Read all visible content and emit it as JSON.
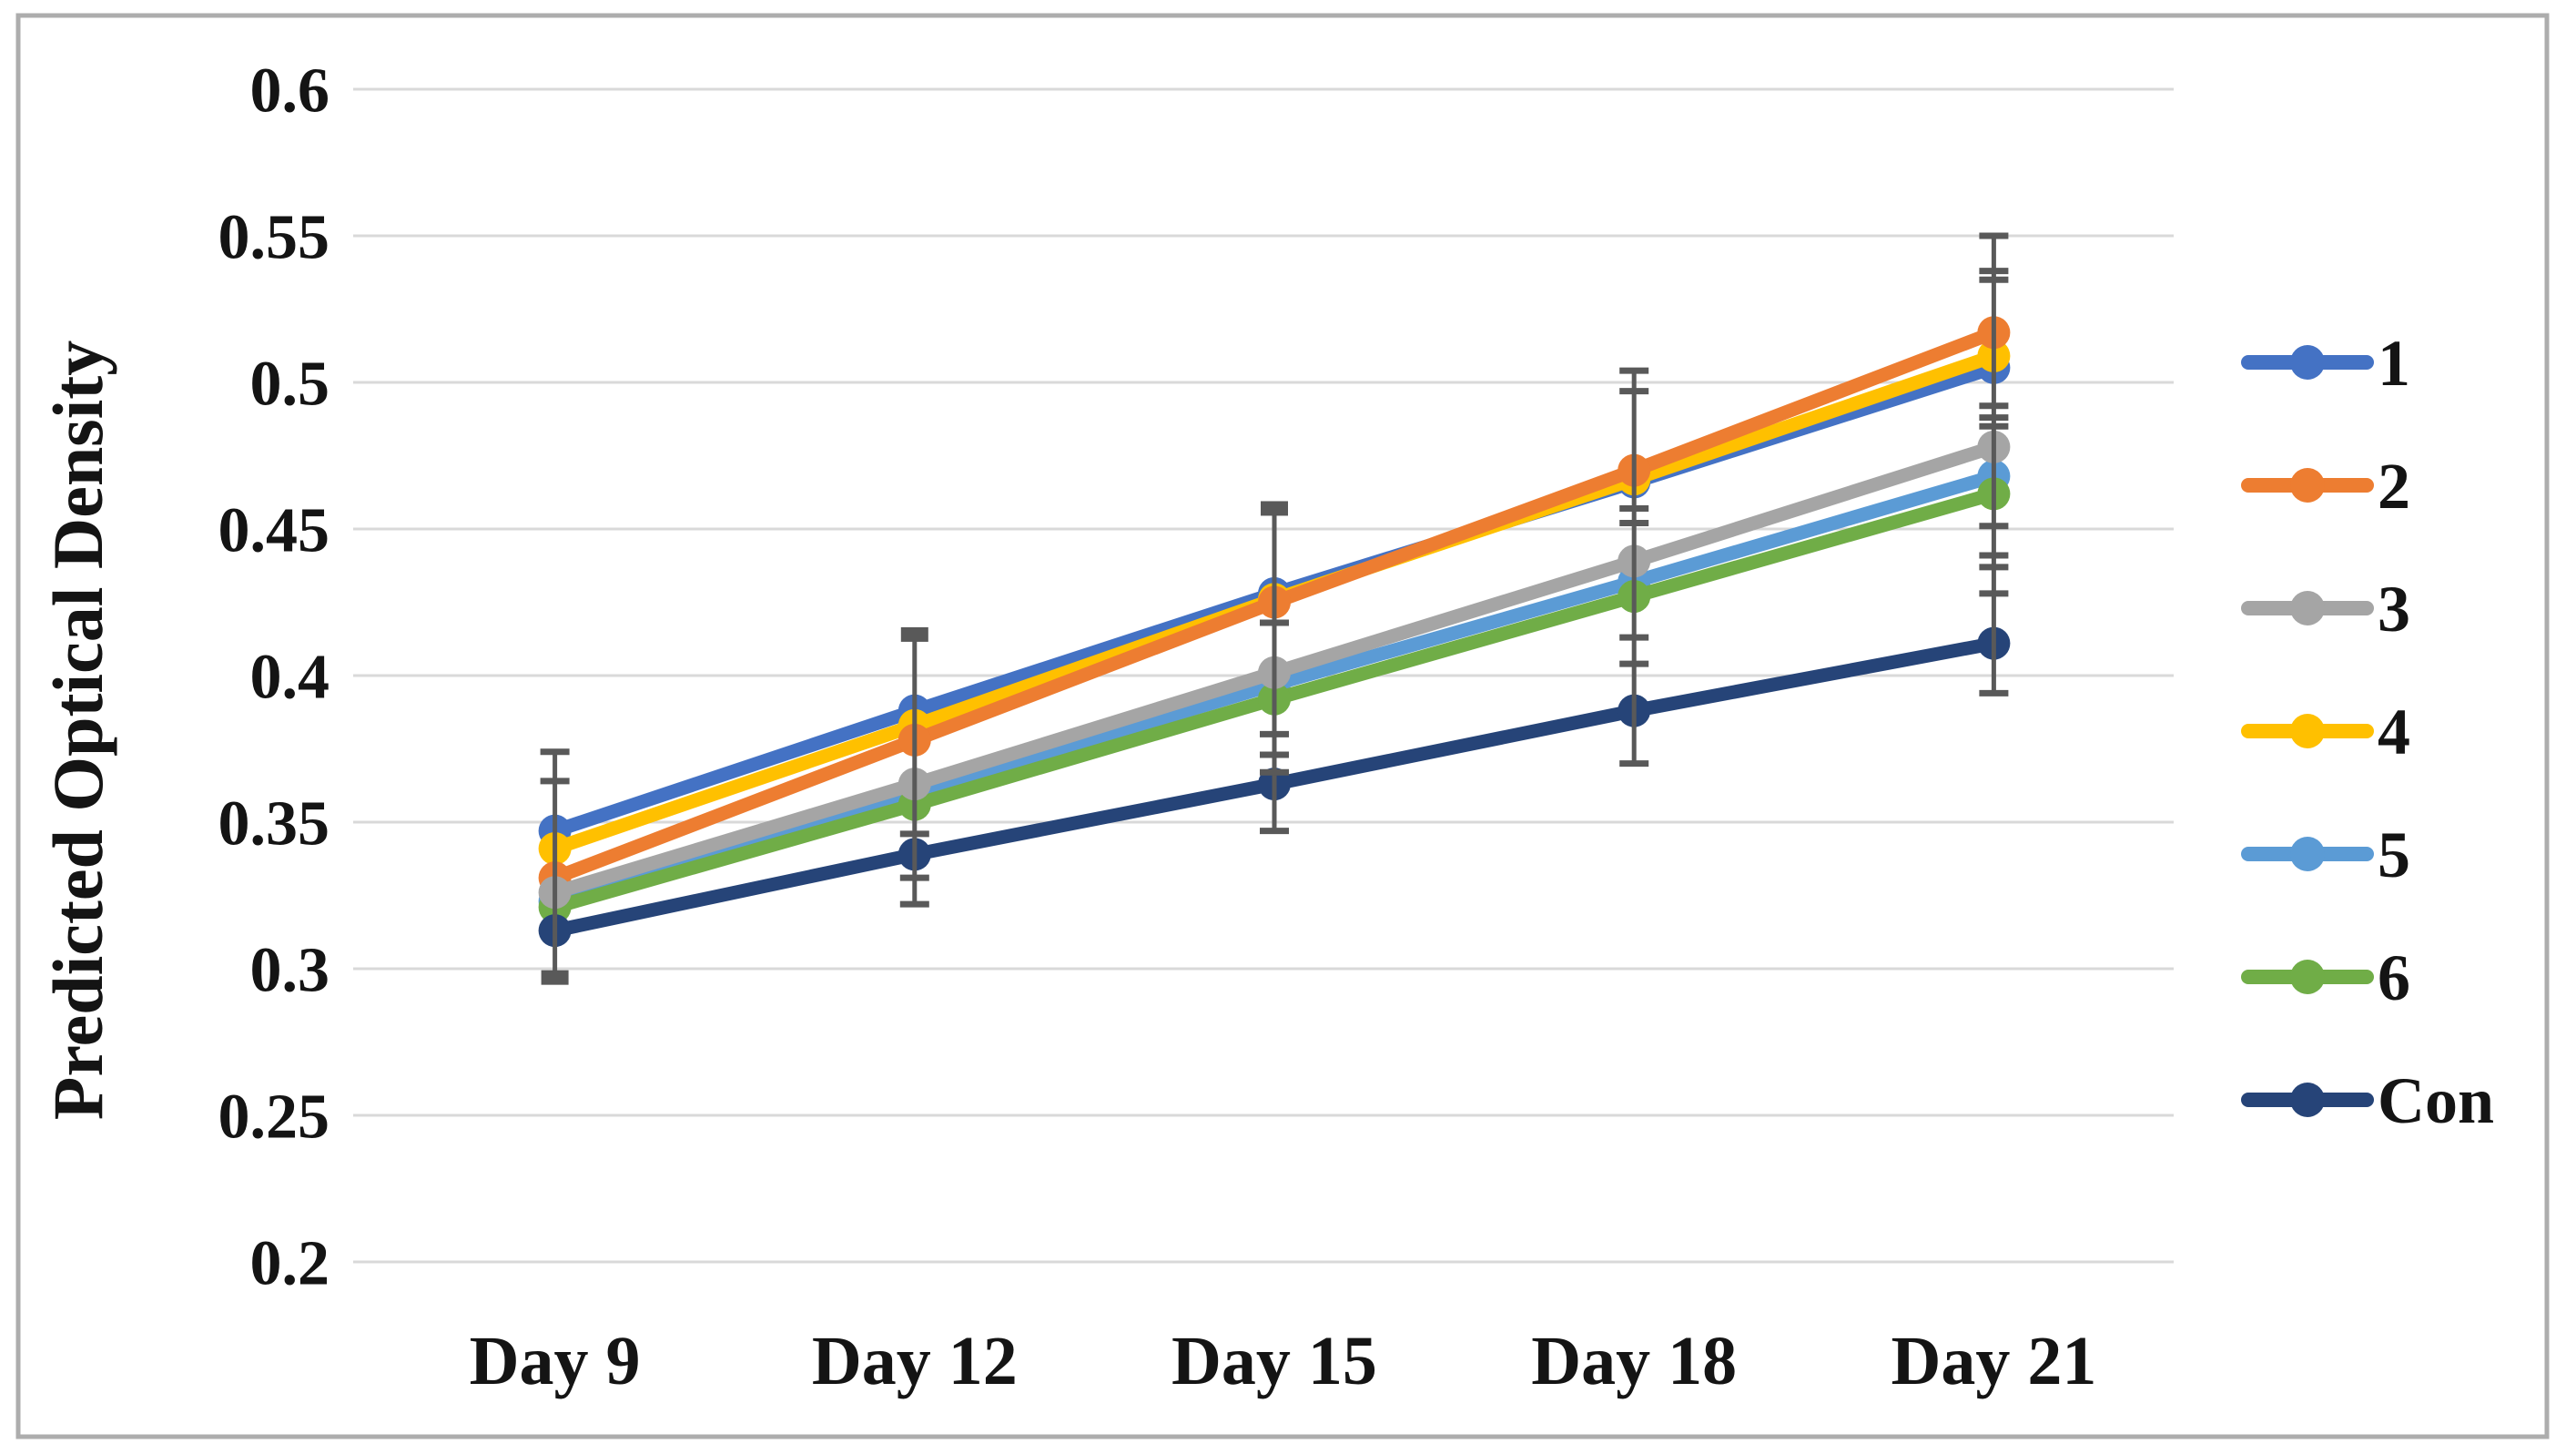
{
  "figure": {
    "background_color": "#FFFFFF",
    "border_color": "#ADADAD",
    "gridline_color": "#D9D9D9",
    "error_bar_color": "#595959",
    "text_color": "#141414"
  },
  "chart_data": {
    "type": "line",
    "title": "",
    "xlabel": "",
    "ylabel": "Predicted Optical Density",
    "categories": [
      "Day 9",
      "Day 12",
      "Day 15",
      "Day 18",
      "Day 21"
    ],
    "ylim": [
      0.2,
      0.6
    ],
    "ytick_step": 0.05,
    "yticks": [
      {
        "value": 0.6,
        "label": "0.6"
      },
      {
        "value": 0.55,
        "label": "0.55"
      },
      {
        "value": 0.5,
        "label": "0.5"
      },
      {
        "value": 0.45,
        "label": "0.45"
      },
      {
        "value": 0.4,
        "label": "0.4"
      },
      {
        "value": 0.35,
        "label": "0.35"
      },
      {
        "value": 0.3,
        "label": "0.3"
      },
      {
        "value": 0.25,
        "label": "0.25"
      },
      {
        "value": 0.2,
        "label": "0.2"
      }
    ],
    "grid": true,
    "legend_position": "right",
    "series": [
      {
        "name": "1",
        "color": "#4472C4",
        "values": [
          0.347,
          0.388,
          0.428,
          0.466,
          0.505
        ]
      },
      {
        "name": "2",
        "color": "#ED7D31",
        "values": [
          0.331,
          0.378,
          0.425,
          0.47,
          0.517
        ]
      },
      {
        "name": "3",
        "color": "#A5A5A5",
        "values": [
          0.326,
          0.363,
          0.401,
          0.439,
          0.478
        ]
      },
      {
        "name": "4",
        "color": "#FFC000",
        "values": [
          0.341,
          0.383,
          0.426,
          0.467,
          0.509
        ]
      },
      {
        "name": "5",
        "color": "#5B9BD5",
        "values": [
          0.323,
          0.36,
          0.397,
          0.432,
          0.468
        ]
      },
      {
        "name": "6",
        "color": "#70AD47",
        "values": [
          0.321,
          0.356,
          0.392,
          0.427,
          0.462
        ]
      },
      {
        "name": "Con",
        "color": "#264478",
        "values": [
          0.313,
          0.339,
          0.363,
          0.388,
          0.411
        ]
      }
    ],
    "error_bars": {
      "color": "#595959",
      "groups": [
        {
          "category": "Day 9",
          "line": [
            0.297,
            0.374
          ],
          "caps": [
            0.374,
            0.364
          ],
          "squares": [
            0.297
          ]
        },
        {
          "category": "Day 12",
          "line": [
            0.322,
            0.414
          ],
          "caps": [
            0.346,
            0.331,
            0.322
          ],
          "squares": [
            0.414
          ]
        },
        {
          "category": "Day 15",
          "line": [
            0.347,
            0.457
          ],
          "caps": [
            0.418,
            0.38,
            0.373,
            0.367,
            0.347
          ],
          "squares": [
            0.457
          ]
        },
        {
          "category": "Day 18",
          "line": [
            0.37,
            0.504
          ],
          "caps": [
            0.504,
            0.497,
            0.457,
            0.452,
            0.413,
            0.404,
            0.37
          ],
          "squares": []
        },
        {
          "category": "Day 21",
          "line": [
            0.394,
            0.55
          ],
          "caps": [
            0.55,
            0.538,
            0.535,
            0.492,
            0.488,
            0.485,
            0.451,
            0.441,
            0.437,
            0.428,
            0.394
          ],
          "squares": []
        }
      ]
    }
  }
}
